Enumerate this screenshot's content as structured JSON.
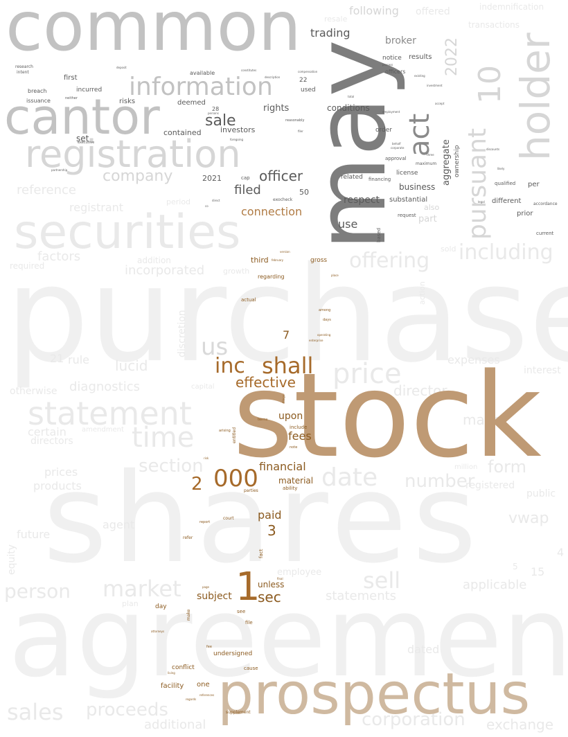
{
  "words": {
    "common": "common",
    "purchase": "purchase",
    "shares": "shares",
    "agreement": "agreement",
    "stock": "stock",
    "may": "may",
    "prospectus": "prospectus",
    "securities": "securities",
    "cantor": "cantor",
    "registration": "registration",
    "information": "information",
    "holder": "holder",
    "pursuant": "pursuant",
    "n10": "10",
    "n2022": "2022",
    "act": "act",
    "statement": "statement",
    "time": "time",
    "price": "price",
    "date": "date",
    "offering": "offering",
    "including": "including",
    "sell": "sell",
    "market": "market",
    "person": "person",
    "sales": "sales",
    "proceeds": "proceeds",
    "corporation": "corporation",
    "exchange": "exchange",
    "us": "us",
    "inc": "inc",
    "shall": "shall",
    "effective": "effective",
    "n000": "000",
    "n1": "1",
    "n2": "2",
    "n3": "3",
    "n7": "7",
    "sec": "sec",
    "subject": "subject",
    "unless": "unless",
    "upon": "upon",
    "fees": "fees",
    "financial": "financial",
    "material": "material",
    "paid": "paid",
    "company": "company",
    "sale": "sale",
    "officer": "officer",
    "filed": "filed",
    "connection": "connection",
    "respect": "respect",
    "use": "use",
    "trading": "trading",
    "following": "following",
    "broker": "broker",
    "rights": "rights",
    "conditions": "conditions",
    "business": "business",
    "aggregate": "aggregate",
    "ownership": "ownership",
    "substantial": "substantial",
    "license": "license",
    "reference": "reference",
    "registrant": "registrant",
    "factors": "factors",
    "incorporated": "incorporated",
    "diagnostics": "diagnostics",
    "lucid": "lucid",
    "rule": "rule",
    "director": "director",
    "section": "section",
    "number": "number",
    "form": "form",
    "made": "made",
    "expenses": "expenses",
    "vwap": "vwap",
    "public": "public",
    "applicable": "applicable",
    "statements": "statements",
    "employee": "employee",
    "n15": "15",
    "prices": "prices",
    "products": "products",
    "certain": "certain",
    "directors": "directors",
    "future": "future",
    "equity": "equity",
    "additional": "additional",
    "otherwise": "otherwise",
    "dated": "dated",
    "registered": "registered",
    "agent": "agent",
    "discretion": "discretion",
    "n21": "21",
    "also": "also",
    "part": "part",
    "different": "different",
    "prior": "prior",
    "per": "per",
    "qualified": "qualified",
    "accordance": "accordance",
    "current": "current",
    "n2021": "2021",
    "n50": "50",
    "investors": "investors",
    "contained": "contained",
    "deemed": "deemed",
    "risks": "risks",
    "incurred": "incurred",
    "first": "first",
    "set": "set",
    "breach": "breach",
    "issuance": "issuance",
    "research": "research",
    "intent": "intent",
    "n28": "28",
    "n22": "22",
    "used": "used",
    "available": "available",
    "notice": "notice",
    "results": "results",
    "officers": "officers",
    "resale": "resale",
    "offered": "offered",
    "transactions": "transactions",
    "indemnification": "indemnification",
    "related": "related",
    "financing": "financing",
    "approval": "approval",
    "order": "order",
    "request": "request",
    "based": "based",
    "maximum": "maximum",
    "third": "third",
    "gross": "gross",
    "regarding": "regarding",
    "actual": "actual",
    "day": "day",
    "see": "see",
    "file": "file",
    "undersigned": "undersigned",
    "conflict": "conflict",
    "cause": "cause",
    "one": "one",
    "facility": "facility",
    "ability": "ability",
    "parties": "parties",
    "fact": "fact",
    "make": "make",
    "court": "court",
    "refer": "refer",
    "report": "report",
    "entitled": "entitled",
    "arising": "arising",
    "include": "include",
    "among": "among",
    "days": "days",
    "operating": "operating",
    "enterprise": "enterprise",
    "supplement": "supplement",
    "exocheck": "exocheck",
    "period": "period",
    "attorneys": "attorneys",
    "fee": "fee",
    "n4": "4",
    "n5": "5",
    "cap": "cap",
    "reasonably": "reasonably",
    "description": "description",
    "compensation": "compensation",
    "investment": "investment",
    "employment": "employment",
    "behalf": "behalf",
    "corporate": "corporate",
    "three": "three",
    "total": "total",
    "neither": "neither",
    "executive": "executive",
    "partnership": "partnership",
    "legal": "legal",
    "addition": "addition",
    "required": "required",
    "capital": "capital",
    "amendment": "amendment",
    "million": "million",
    "interest": "interest",
    "place": "place",
    "plan": "plan",
    "action": "action",
    "sold": "sold",
    "growth": "growth",
    "risk": "risk",
    "final": "final",
    "page": "page",
    "references": "references",
    "living": "living",
    "regards": "regards",
    "filings": "filings",
    "terms": "terms",
    "note": "note",
    "version": "version",
    "february": "february",
    "direct": "direct",
    "foregoing": "foregoing",
    "persons": "persons",
    "filer": "filer",
    "accept": "accept",
    "existing": "existing",
    "process": "process",
    "deposit": "deposit",
    "constitutes": "constitutes",
    "note2": "date",
    "likely": "likely",
    "discounts": "discounts",
    "purpose": "purpose",
    "event": "event",
    "co": "co",
    "ipo": "ipo",
    "n12": "12",
    "sbo": "sbo",
    "sts": "sts"
  }
}
